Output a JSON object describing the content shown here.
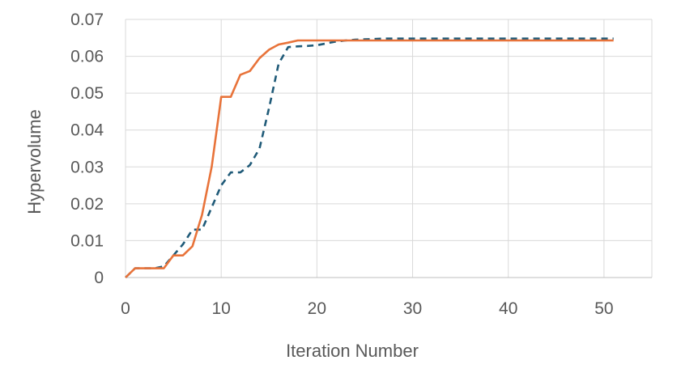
{
  "chart_data": {
    "type": "line",
    "title": "",
    "xlabel": "Iteration Number",
    "ylabel": "Hypervolume",
    "xlim": [
      0,
      55
    ],
    "ylim": [
      0,
      0.07
    ],
    "x_ticks": [
      "0",
      "10",
      "20",
      "30",
      "40",
      "50"
    ],
    "y_ticks": [
      "0",
      "0.01",
      "0.02",
      "0.03",
      "0.04",
      "0.05",
      "0.06",
      "0.07"
    ],
    "grid": true,
    "legend": "none",
    "series": [
      {
        "color": "#1f5a78",
        "style": "dashed",
        "x": [
          0,
          1,
          2,
          3,
          4,
          5,
          6,
          7,
          8,
          9,
          10,
          11,
          12,
          13,
          14,
          15,
          16,
          17,
          18,
          19,
          20,
          21,
          22,
          23,
          24,
          25,
          26,
          27,
          28,
          29,
          30,
          31,
          32,
          33,
          34,
          35,
          36,
          37,
          38,
          39,
          40,
          41,
          42,
          43,
          44,
          45,
          46,
          47,
          48,
          49,
          50,
          51
        ],
        "values": [
          0,
          0.0025,
          0.0025,
          0.0025,
          0.003,
          0.006,
          0.009,
          0.013,
          0.013,
          0.019,
          0.025,
          0.0285,
          0.0285,
          0.0305,
          0.035,
          0.046,
          0.058,
          0.0625,
          0.0627,
          0.0628,
          0.063,
          0.0635,
          0.064,
          0.0643,
          0.0645,
          0.0646,
          0.0647,
          0.0648,
          0.0648,
          0.0648,
          0.0648,
          0.0648,
          0.0648,
          0.0648,
          0.0648,
          0.0648,
          0.0648,
          0.0648,
          0.0648,
          0.0648,
          0.0648,
          0.0648,
          0.0648,
          0.0648,
          0.0648,
          0.0648,
          0.0648,
          0.0648,
          0.0648,
          0.0648,
          0.0648,
          0.0648
        ]
      },
      {
        "color": "#e8733a",
        "style": "solid",
        "x": [
          0,
          1,
          2,
          3,
          4,
          5,
          6,
          7,
          8,
          9,
          10,
          11,
          12,
          13,
          14,
          15,
          16,
          17,
          18,
          19,
          20,
          21,
          22,
          23,
          24,
          25,
          26,
          27,
          28,
          29,
          30,
          31,
          32,
          33,
          34,
          35,
          36,
          37,
          38,
          39,
          40,
          41,
          42,
          43,
          44,
          45,
          46,
          47,
          48,
          49,
          50,
          51
        ],
        "values": [
          0,
          0.0025,
          0.0025,
          0.0025,
          0.0025,
          0.006,
          0.006,
          0.0085,
          0.017,
          0.03,
          0.049,
          0.049,
          0.055,
          0.056,
          0.0595,
          0.0618,
          0.0632,
          0.0637,
          0.0643,
          0.0643,
          0.0643,
          0.0643,
          0.0643,
          0.0643,
          0.0643,
          0.0643,
          0.0643,
          0.0643,
          0.0643,
          0.0643,
          0.0643,
          0.0643,
          0.0643,
          0.0643,
          0.0643,
          0.0643,
          0.0643,
          0.0643,
          0.0643,
          0.0643,
          0.0643,
          0.0643,
          0.0643,
          0.0643,
          0.0643,
          0.0643,
          0.0643,
          0.0643,
          0.0643,
          0.0643,
          0.0643,
          0.0643
        ]
      }
    ]
  }
}
